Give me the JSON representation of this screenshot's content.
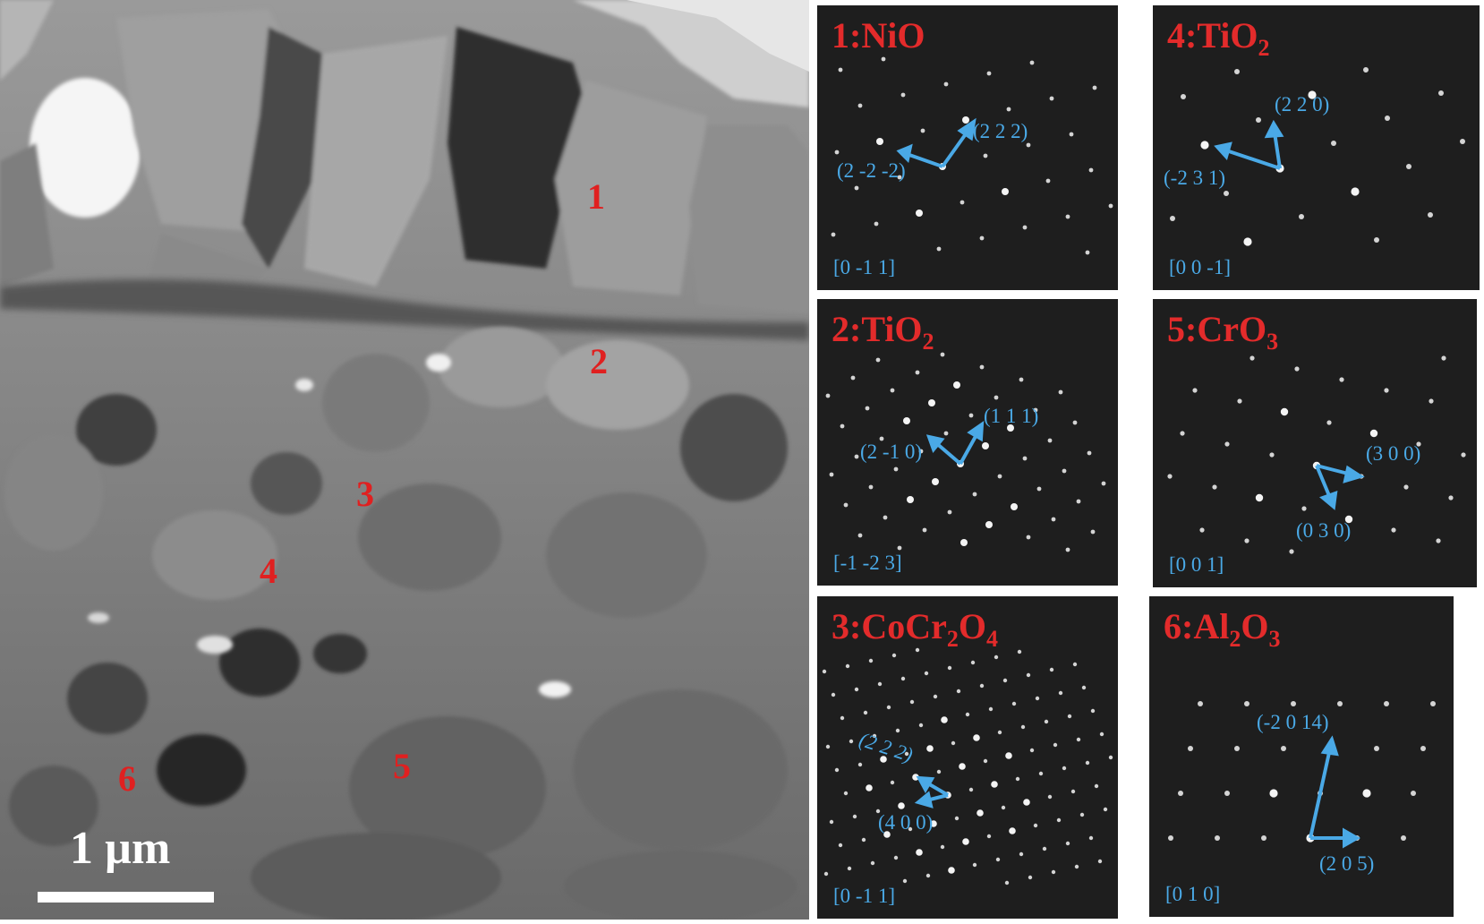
{
  "tem_image": {
    "scale_bar_label": "1 µm",
    "grain_labels": [
      "1",
      "2",
      "3",
      "4",
      "5",
      "6"
    ]
  },
  "panels": [
    {
      "index": "1",
      "phase_main": "1:NiO",
      "phase_sub": "",
      "phase_tail": "",
      "phase_sub2": "",
      "zone_axis": "[0 -1 1]",
      "spot_labels": [
        "(2 2 2)",
        "(2 -2 -2)"
      ]
    },
    {
      "index": "2",
      "phase_main": "2:TiO",
      "phase_sub": "2",
      "phase_tail": "",
      "phase_sub2": "",
      "zone_axis": "[-1 -2 3]",
      "spot_labels": [
        "(1 1 1)",
        "(2 -1 0)"
      ]
    },
    {
      "index": "3",
      "phase_main": "3:CoCr",
      "phase_sub": "2",
      "phase_tail": "O",
      "phase_sub2": "4",
      "zone_axis": "[0 -1 1]",
      "spot_labels": [
        "(2 2 2)",
        "(4 0 0)"
      ]
    },
    {
      "index": "4",
      "phase_main": "4:TiO",
      "phase_sub": "2",
      "phase_tail": "",
      "phase_sub2": "",
      "zone_axis": "[0 0 -1]",
      "spot_labels": [
        "(2 2 0)",
        "(-2 3 1)"
      ]
    },
    {
      "index": "5",
      "phase_main": "5:CrO",
      "phase_sub": "3",
      "phase_tail": "",
      "phase_sub2": "",
      "zone_axis": "[0 0 1]",
      "spot_labels": [
        "(3 0 0)",
        "(0 3 0)"
      ]
    },
    {
      "index": "6",
      "phase_main": "6:Al",
      "phase_sub": "2",
      "phase_tail": "O",
      "phase_sub2": "3",
      "zone_axis": "[0 1 0]",
      "spot_labels": [
        "(-2 0 14)",
        "(2 0 5)"
      ]
    }
  ],
  "colors": {
    "phase_label": "#e32b2b",
    "index_label": "#4aa9e6",
    "grain_label": "#e02020",
    "pattern_background": "#1e1e1e"
  }
}
